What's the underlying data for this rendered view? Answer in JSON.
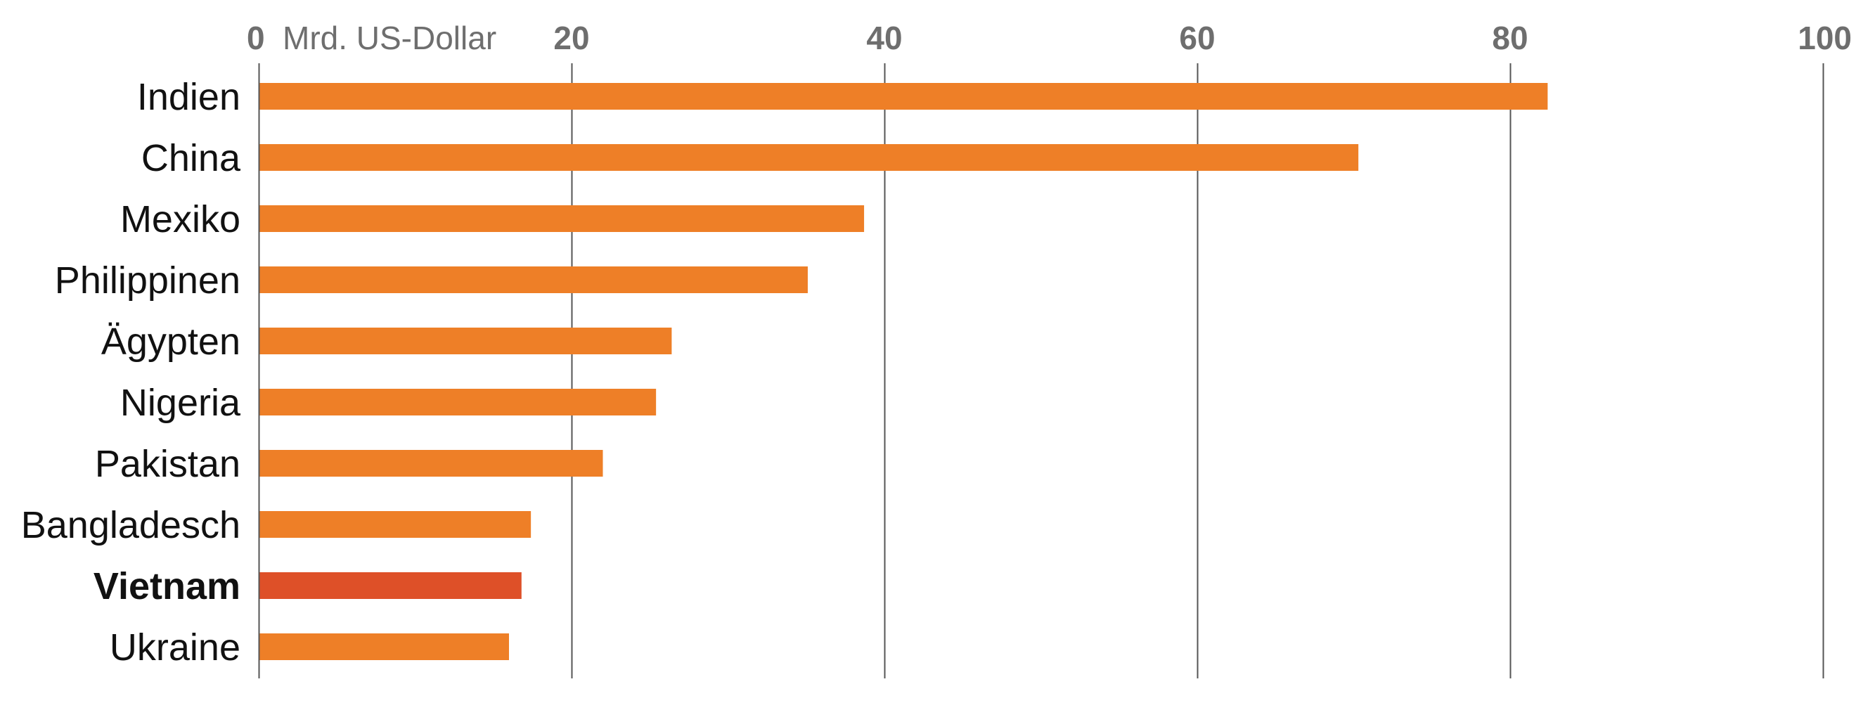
{
  "chart_data": {
    "type": "bar",
    "orientation": "horizontal",
    "title": "",
    "unit_label": "Mrd. US-Dollar",
    "xlim": [
      0,
      100
    ],
    "ticks": [
      0,
      20,
      40,
      60,
      80,
      100
    ],
    "tick_labels": [
      "0",
      "20",
      "40",
      "60",
      "80",
      "100"
    ],
    "grid": true,
    "categories": [
      "Indien",
      "China",
      "Mexiko",
      "Philippinen",
      "Ägypten",
      "Nigeria",
      "Pakistan",
      "Bangladesch",
      "Vietnam",
      "Ukraine"
    ],
    "values": [
      82.4,
      70.3,
      38.7,
      35.1,
      26.4,
      25.4,
      22.0,
      17.4,
      16.8,
      16.0
    ],
    "highlight": "Vietnam",
    "colors": {
      "bar": "#ee7f27",
      "highlight_bar": "#de5028",
      "grid": "#555555",
      "tick_text": "#6e6e6e",
      "category_text": "#111111"
    }
  }
}
